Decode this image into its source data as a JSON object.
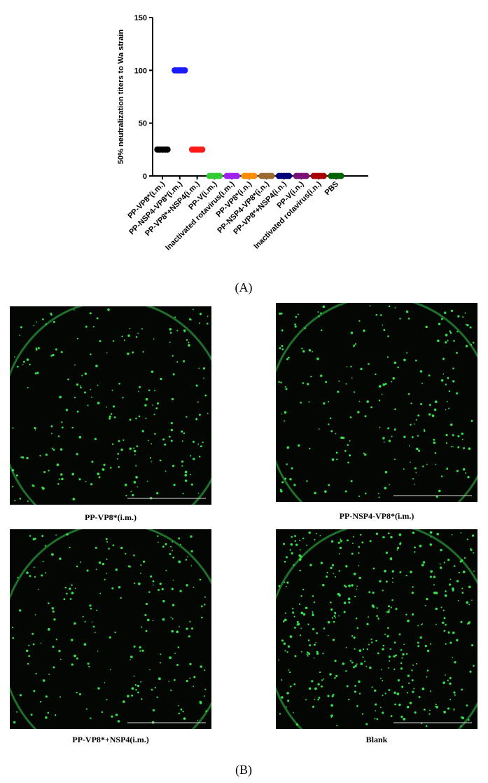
{
  "chart_data": {
    "type": "dot",
    "ylabel": "50% neutralization titers  to Wa strain",
    "categories": [
      "PP-VP8*(i.m.)",
      "PP-NSP4-VP8*(i.m.)",
      "PP-VP8*+NSP4(i.m.)",
      "PP-V(i.m.)",
      "Inactivated rotavirus(i.m.)",
      "PP-VP8*(i.n.)",
      "PP-NSP4-VP8*(i.n.)",
      "PP-VP8*+NSP4(i.n.)",
      "PP-V(i.n.)",
      "Inactivated rotavirus(i.n.)",
      "PBS"
    ],
    "values": [
      [
        25,
        25,
        25,
        25,
        25
      ],
      [
        100,
        100,
        100,
        100,
        100
      ],
      [
        25,
        25,
        25,
        25,
        25
      ],
      [
        0,
        0,
        0,
        0,
        0
      ],
      [
        0,
        0,
        0,
        0,
        0
      ],
      [
        0,
        0,
        0,
        0,
        0
      ],
      [
        0,
        0,
        0,
        0,
        0
      ],
      [
        0,
        0,
        0,
        0,
        0
      ],
      [
        0,
        0,
        0,
        0,
        0
      ],
      [
        0,
        0,
        0,
        0,
        0
      ],
      [
        0,
        0,
        0,
        0,
        0
      ]
    ],
    "colors": [
      "#000000",
      "#1a1aff",
      "#ff1a1a",
      "#33cc33",
      "#a020f0",
      "#ff8c00",
      "#9c6a2e",
      "#00007a",
      "#7a0f7a",
      "#a80000",
      "#006400"
    ],
    "ylim": [
      0,
      150
    ],
    "yticks": [
      0,
      50,
      100,
      150
    ]
  },
  "panel_labels": [
    "(A)",
    "(B)"
  ],
  "images": [
    {
      "caption": "PP-VP8*(i.m.)"
    },
    {
      "caption": "PP-NSP4-VP8*(i.m.)"
    },
    {
      "caption": "PP-VP8*+NSP4(i.m.)"
    },
    {
      "caption": "Blank"
    }
  ]
}
